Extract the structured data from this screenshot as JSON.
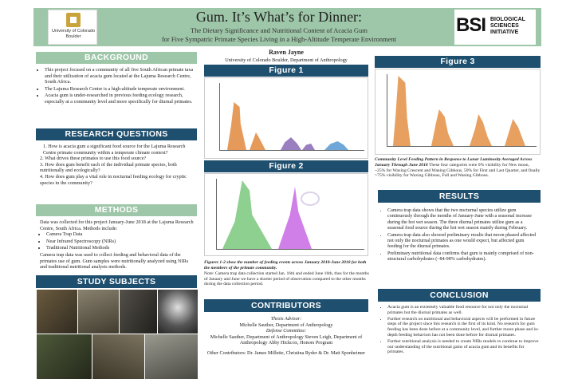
{
  "header": {
    "title": "Gum. It’s What’s for Dinner:",
    "subtitle_line1": "The Dietary Significance and Nutritional Content of Acacia Gum",
    "subtitle_line2": "for Five Sympatric Primate Species Living in a High-Altitude Temperate Environment",
    "logo_left_text": "University of Colorado\nBoulder",
    "logo_right_big": "BSI",
    "logo_right_small": "BIOLOGICAL SCIENCES INITIATIVE"
  },
  "author": {
    "name": "Raven Jayne",
    "affiliation": "University of Colorado Boulder, Department of Anthropology"
  },
  "sections": {
    "background": {
      "title": "BACKGROUND",
      "items": [
        "This project focused on a community of all five South African primate taxa and their utilization of acacia gum located at the Lajuma Research Centre, South Africa.",
        "The Lajuma Research Centre is a high-altitude temperate environment.",
        "Acacia gum is under-researched in previous feeding ecology research, especially at a community level and more specifically for diurnal primates."
      ]
    },
    "research_questions": {
      "title": "RESEARCH QUESTIONS",
      "items": [
        "1.  How is acacia gum a significant food source for the Lajuma Research Centre primate community within a temperate climate context?",
        "2. What drives these primates to use this food source?",
        "3. How does gum benefit each of the individual primate species, both nutritionally and ecologically?",
        "4. How does gum play a vital role in nocturnal feeding ecology for cryptic species in the community?"
      ]
    },
    "methods": {
      "title": "METHODS",
      "intro": "Data was collected for this project January-June 2018 at the Lajuma Research Centre, South Africa. Methods include:",
      "items": [
        "Camera Trap Data",
        "Near Infrared Spectroscopy (NIRs)",
        "Traditional Nutritional Methods"
      ],
      "outro": "Camera trap data was used to collect feeding and behavioral data of the primates use of gum. Gum samples were nutritionally analyzed using NIRs and traditional nutritional analysis methods."
    },
    "study_subjects": {
      "title": "STUDY SUBJECTS"
    },
    "figure1": {
      "title": "Figure 1"
    },
    "figure2": {
      "title": "Figure 2"
    },
    "figure_caption": "Figures 1-2 show the number of feeding events across January 2018-June 2018 for both the members of the primate community.",
    "figure_note": "Note: Camera trap data collection started Jan. 16th and ended June 16th, thus for the months of January and June we have a shorter period of observation compared to the other months during the data collection period.",
    "contributors": {
      "title": "CONTRIBUTORS",
      "thesis_label": "Thesis Advisor:",
      "thesis_name": "Michelle Sauther, Department of Anthropology",
      "defense_label": "Defense Committee:",
      "defense_names": "Michelle Sauther, Department of Anthropology Steven Leigh, Department of Anthropology Abby Hickcox, Honors Program",
      "other": "Other Contributors: Dr. James Millette, Christina Ryder & Dr. Matt Sponheimer"
    },
    "figure3": {
      "title": "Figure 3",
      "caption_bold": "Community Level Feeding Pattern in Response to Lunar Luminosity Averaged Across January Through June 2018",
      "caption_text": "These four categories were 0% visibility for New moon, ~25% for Waxing Crescent and Waning Gibbous, 50% for First and Last Quarter, and finally >75% visibility for Waxing Gibbous, Full and Waning Gibbous."
    },
    "results": {
      "title": "RESULTS",
      "items": [
        "Camera trap data shows that the two nocturnal species utilize gum continuously through the months of January-June with a seasonal increase  during the hot wet season. The three diurnal primates utilize gum as a seasonal food source during the hot wet season mainly during February.",
        "Camera trap data also showed preliminary  results that moon phased affected not only the nocturnal primates as one would expect, but affected gum feeding for the diurnal primates.",
        "Preliminary nutritional data confirms that gum is mainly comprised of non-structural carbohydrates (~84-98% carbohydrates)."
      ]
    },
    "conclusion": {
      "title": "CONCLUSION",
      "items": [
        "Acacia gum is an extremely valuable food resource for not only the nocturnal primates but the diurnal primates as well.",
        "Further research on nutritional and behavioral aspects will be preformed in future steps of the project since this research is the first of its kind. No research for gum feeding has been done before at a community level, and further moon phase and in-depth feeding behaviors has not been done before for diurnal primates.",
        "Further nutritional analysis is needed to create NIRs models to continue to improve our understanding of the nutritional gains of acacia gum and its benefits for primates."
      ]
    }
  },
  "colors": {
    "header_green": "#9ec6a8",
    "section_blue": "#1f4f6e",
    "fig1_orange": "#e69a5a",
    "fig1_purple": "#9a7fc0",
    "fig1_blue": "#6fa8d8",
    "fig2_green": "#8ed08f",
    "fig2_magenta": "#d07ee8",
    "fig3_orange": "#e8a060"
  }
}
